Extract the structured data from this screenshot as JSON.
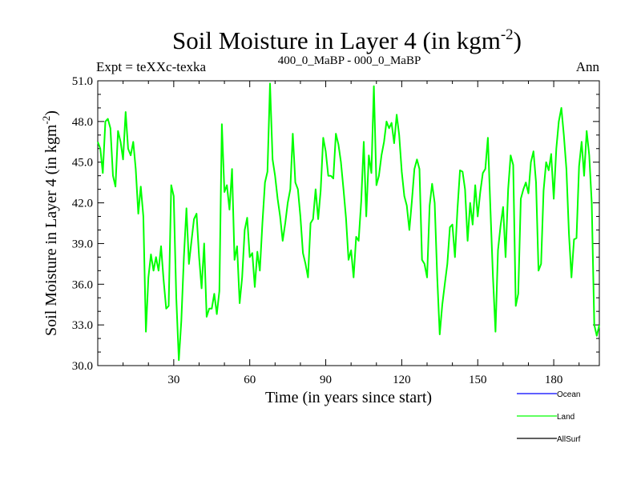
{
  "chart_data": {
    "type": "line",
    "title": "Soil Moisture in Layer 4 (in kgm",
    "title_sup": "-2",
    "title_close": ")",
    "subtitle_left": "Expt = teXXc-texka",
    "subtitle_center": "400_0_MaBP - 000_0_MaBP",
    "subtitle_right": "Ann",
    "xlabel": "Time (in years since start)",
    "ylabel": "Soil Moisture in Layer 4 (in kgm",
    "ylabel_sup": "-2",
    "ylabel_close": ")",
    "xlim": [
      0,
      198
    ],
    "ylim": [
      30,
      51
    ],
    "xticks": [
      30,
      60,
      90,
      120,
      150,
      180
    ],
    "xtick_labels": [
      "30",
      "60",
      "90",
      "120",
      "150",
      "180"
    ],
    "yticks": [
      30,
      33,
      36,
      39,
      42,
      45,
      48,
      51
    ],
    "ytick_labels": [
      "30.0",
      "33.0",
      "36.0",
      "39.0",
      "42.0",
      "45.0",
      "48.0",
      "51.0"
    ],
    "legend": [
      {
        "name": "Ocean",
        "color": "#0000ff"
      },
      {
        "name": "Land",
        "color": "#00ff00"
      },
      {
        "name": "AllSurf",
        "color": "#000000"
      }
    ],
    "series": [
      {
        "name": "Land",
        "color": "#00ff00",
        "x": [
          0,
          1,
          2,
          3,
          4,
          5,
          6,
          7,
          8,
          9,
          10,
          11,
          12,
          13,
          14,
          15,
          16,
          17,
          18,
          19,
          20,
          21,
          22,
          23,
          24,
          25,
          26,
          27,
          28,
          29,
          30,
          31,
          32,
          33,
          34,
          35,
          36,
          37,
          38,
          39,
          40,
          41,
          42,
          43,
          44,
          45,
          46,
          47,
          48,
          49,
          50,
          51,
          52,
          53,
          54,
          55,
          56,
          57,
          58,
          59,
          60,
          61,
          62,
          63,
          64,
          65,
          66,
          67,
          68,
          69,
          70,
          71,
          72,
          73,
          74,
          75,
          76,
          77,
          78,
          79,
          80,
          81,
          82,
          83,
          84,
          85,
          86,
          87,
          88,
          89,
          90,
          91,
          92,
          93,
          94,
          95,
          96,
          97,
          98,
          99,
          100,
          101,
          102,
          103,
          104,
          105,
          106,
          107,
          108,
          109,
          110,
          111,
          112,
          113,
          114,
          115,
          116,
          117,
          118,
          119,
          120,
          121,
          122,
          123,
          124,
          125,
          126,
          127,
          128,
          129,
          130,
          131,
          132,
          133,
          134,
          135,
          136,
          137,
          138,
          139,
          140,
          141,
          142,
          143,
          144,
          145,
          146,
          147,
          148,
          149,
          150,
          151,
          152,
          153,
          154,
          155,
          156,
          157,
          158,
          159,
          160,
          161,
          162,
          163,
          164,
          165,
          166,
          167,
          168,
          169,
          170,
          171,
          172,
          173,
          174,
          175,
          176,
          177,
          178,
          179,
          180,
          181,
          182,
          183,
          184,
          185,
          186,
          187,
          188,
          189,
          190,
          191,
          192,
          193,
          194,
          195,
          196,
          197,
          198
        ],
        "values": [
          46.5,
          46.0,
          44.2,
          48.0,
          48.2,
          47.5,
          44.0,
          43.2,
          47.3,
          46.5,
          45.2,
          48.7,
          46.0,
          45.5,
          46.5,
          44.5,
          41.2,
          43.2,
          41.0,
          32.5,
          36.5,
          38.2,
          37.0,
          38.0,
          37.0,
          38.8,
          36.3,
          34.2,
          34.4,
          43.3,
          42.5,
          35.0,
          30.4,
          33.3,
          38.0,
          41.6,
          37.5,
          39.2,
          40.8,
          41.2,
          38.0,
          35.7,
          39.0,
          33.6,
          34.2,
          34.2,
          35.3,
          33.8,
          35.5,
          47.8,
          42.8,
          43.3,
          41.5,
          44.5,
          37.8,
          38.8,
          34.6,
          36.5,
          40.0,
          40.9,
          38.0,
          38.3,
          35.8,
          38.4,
          37.0,
          40.5,
          43.5,
          44.3,
          50.8,
          45.2,
          44.0,
          42.3,
          41.0,
          39.2,
          40.5,
          42.0,
          43.0,
          47.1,
          43.5,
          43.0,
          41.0,
          38.3,
          37.5,
          36.5,
          40.5,
          40.8,
          43.0,
          40.8,
          42.9,
          46.8,
          45.8,
          44.0,
          44.0,
          43.8,
          47.1,
          46.3,
          45.0,
          43.0,
          40.9,
          37.8,
          38.5,
          36.5,
          39.5,
          39.2,
          42.1,
          46.5,
          41.0,
          45.5,
          44.2,
          50.6,
          43.3,
          44.0,
          45.5,
          46.5,
          48.0,
          47.5,
          47.9,
          46.4,
          48.5,
          47.0,
          44.3,
          42.5,
          41.8,
          40.0,
          42.1,
          44.5,
          45.2,
          44.5,
          37.8,
          37.5,
          36.5,
          41.8,
          43.4,
          42.0,
          36.5,
          32.3,
          34.5,
          36.0,
          37.5,
          40.2,
          40.4,
          38.0,
          41.5,
          44.4,
          44.3,
          43.0,
          39.2,
          42.0,
          40.4,
          43.3,
          41.0,
          42.8,
          44.2,
          44.5,
          46.8,
          41.5,
          36.6,
          32.5,
          38.5,
          40.3,
          41.7,
          38.0,
          43.0,
          45.5,
          44.8,
          34.4,
          35.3,
          42.3,
          43.0,
          43.5,
          42.7,
          45.0,
          45.8,
          43.5,
          37.0,
          37.5,
          42.9,
          45.0,
          44.4,
          45.6,
          42.3,
          46.0,
          48.0,
          49.0,
          47.0,
          44.5,
          39.7,
          36.5,
          39.3,
          39.4,
          44.7,
          46.5,
          44.0,
          47.3,
          45.5,
          42.0,
          33.0,
          32.2,
          33.0
        ]
      }
    ]
  }
}
